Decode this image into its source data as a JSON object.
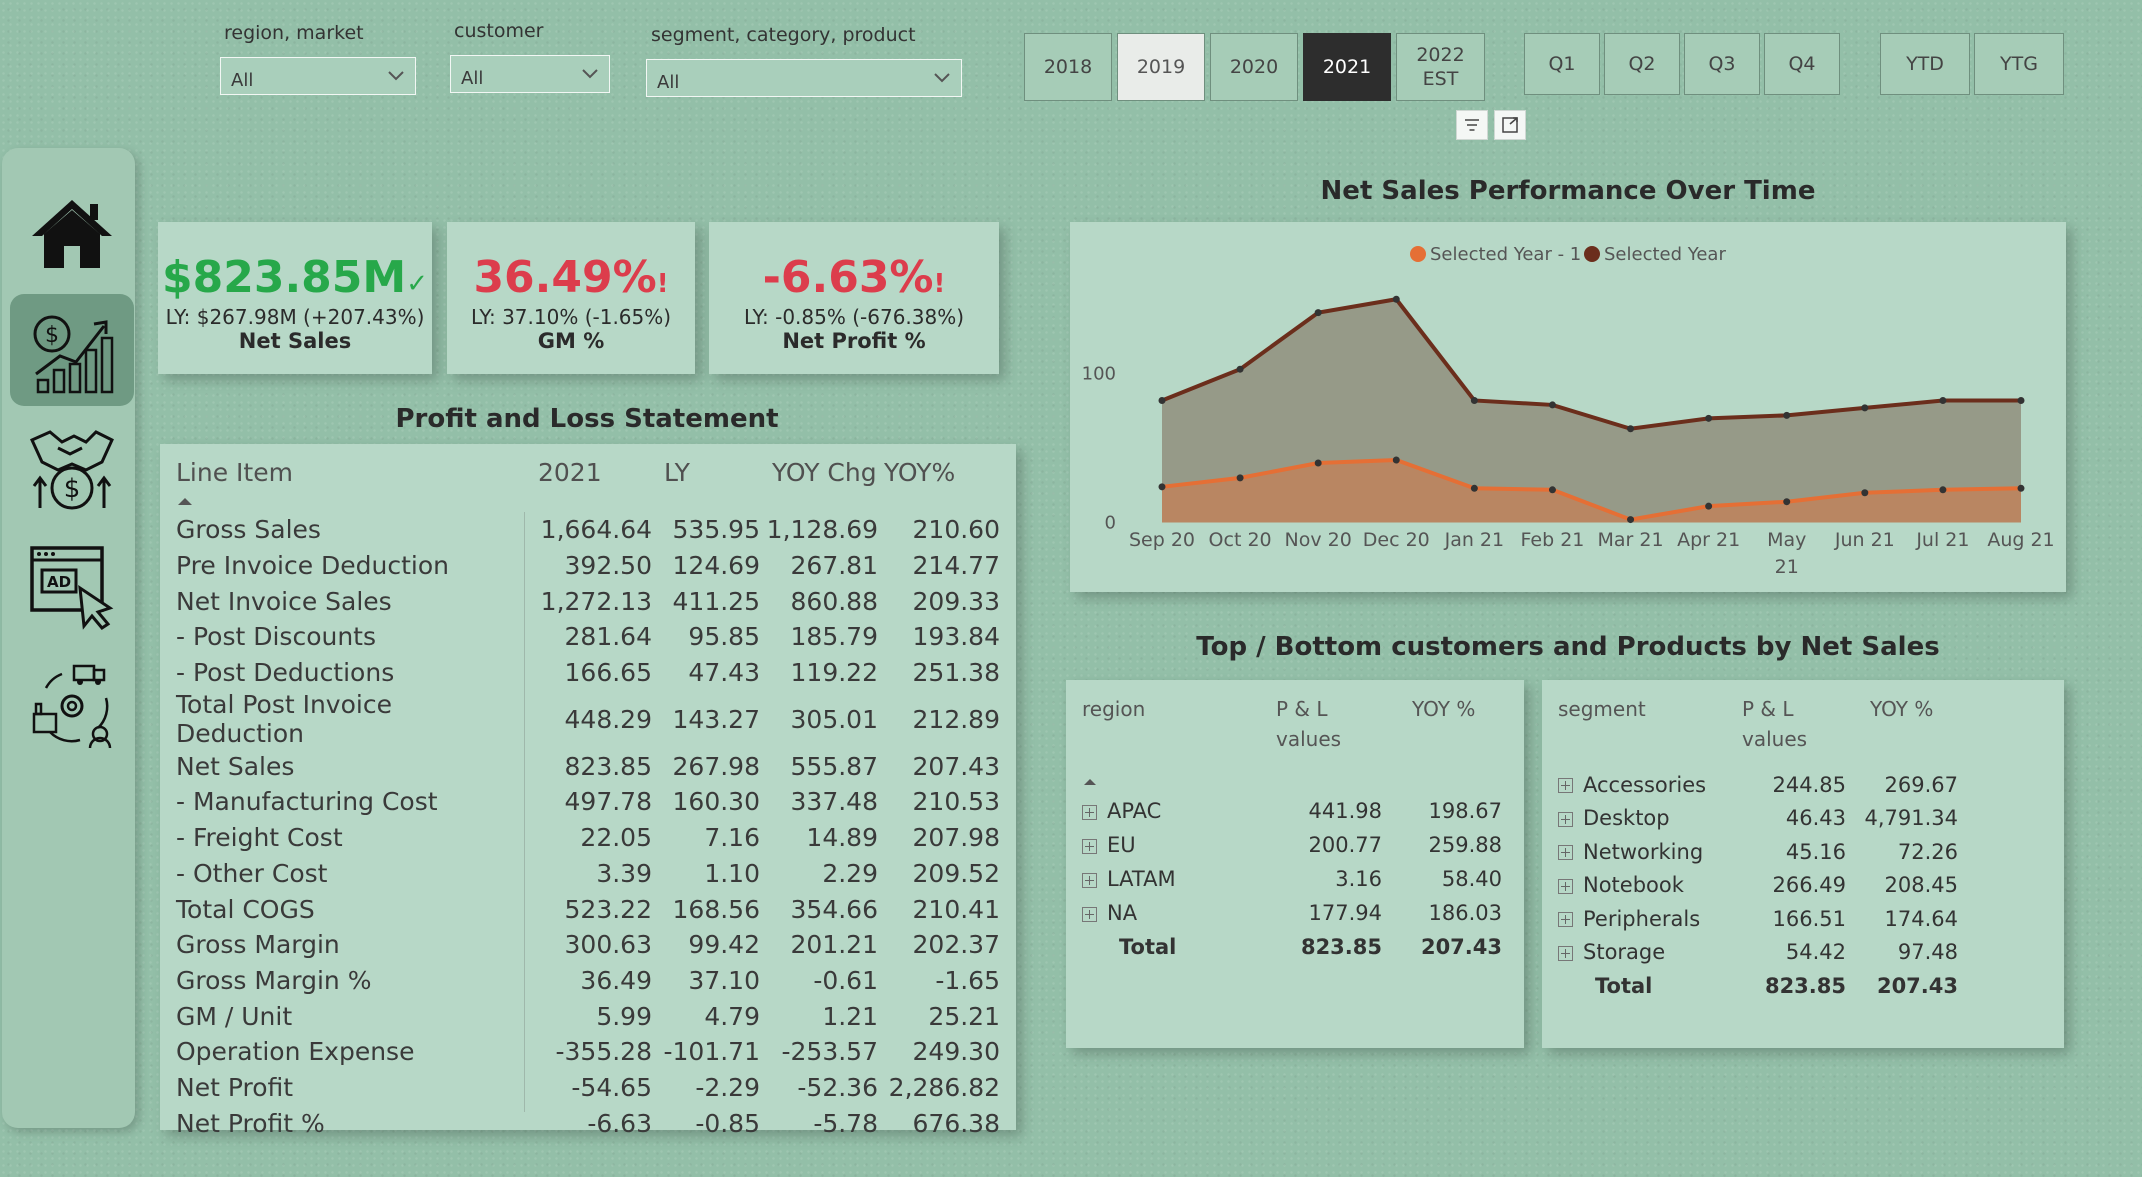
{
  "filters": {
    "region_label": "region, market",
    "region_value": "All",
    "customer_label": "customer",
    "customer_value": "All",
    "segment_label": "segment, category, product",
    "segment_value": "All"
  },
  "years": [
    "2018",
    "2019",
    "2020",
    "2021",
    "2022 EST"
  ],
  "selected_year": "2021",
  "quarters": [
    "Q1",
    "Q2",
    "Q3",
    "Q4"
  ],
  "periods": [
    "YTD",
    "YTG"
  ],
  "nav": {
    "items": [
      "home-icon",
      "finance-chart-icon",
      "handshake-money-icon",
      "ad-click-icon",
      "supply-chain-icon"
    ],
    "active_index": 1
  },
  "kpis": {
    "net_sales": {
      "value": "$823.85M",
      "ly": "LY: $267.98M (+207.43%)",
      "name": "Net Sales",
      "status": "✓"
    },
    "gm": {
      "value": "36.49%",
      "ly": "LY: 37.10% (-1.65%)",
      "name": "GM %",
      "status": "!"
    },
    "net_profit": {
      "value": "-6.63%",
      "ly": "LY: -0.85% (-676.38%)",
      "name": "Net Profit %",
      "status": "!"
    }
  },
  "colors": {
    "good": "#27a84a",
    "bad": "#dc3d4c",
    "ly_series": "#e56f35",
    "cy_series": "#6b2e1c"
  },
  "pl": {
    "title": "Profit and Loss Statement",
    "headers": [
      "Line Item",
      "2021",
      "LY",
      "YOY Chg",
      "YOY%"
    ],
    "rows": [
      [
        "Gross Sales",
        "1,664.64",
        "535.95",
        "1,128.69",
        "210.60"
      ],
      [
        "Pre Invoice Deduction",
        "392.50",
        "124.69",
        "267.81",
        "214.77"
      ],
      [
        "Net Invoice Sales",
        "1,272.13",
        "411.25",
        "860.88",
        "209.33"
      ],
      [
        "- Post Discounts",
        "281.64",
        "95.85",
        "185.79",
        "193.84"
      ],
      [
        "- Post Deductions",
        "166.65",
        "47.43",
        "119.22",
        "251.38"
      ],
      [
        "Total Post Invoice Deduction",
        "448.29",
        "143.27",
        "305.01",
        "212.89"
      ],
      [
        "Net Sales",
        "823.85",
        "267.98",
        "555.87",
        "207.43"
      ],
      [
        "- Manufacturing Cost",
        "497.78",
        "160.30",
        "337.48",
        "210.53"
      ],
      [
        "- Freight Cost",
        "22.05",
        "7.16",
        "14.89",
        "207.98"
      ],
      [
        "- Other Cost",
        "3.39",
        "1.10",
        "2.29",
        "209.52"
      ],
      [
        "Total COGS",
        "523.22",
        "168.56",
        "354.66",
        "210.41"
      ],
      [
        "Gross Margin",
        "300.63",
        "99.42",
        "201.21",
        "202.37"
      ],
      [
        "Gross Margin %",
        "36.49",
        "37.10",
        "-0.61",
        "-1.65"
      ],
      [
        "GM / Unit",
        "5.99",
        "4.79",
        "1.21",
        "25.21"
      ],
      [
        "Operation Expense",
        "-355.28",
        "-101.71",
        "-253.57",
        "249.30"
      ],
      [
        "Net Profit",
        "-54.65",
        "-2.29",
        "-52.36",
        "2,286.82"
      ],
      [
        "Net Profit %",
        "-6.63",
        "-0.85",
        "-5.78",
        "676.38"
      ]
    ]
  },
  "chart_title": "Net Sales Performance Over Time",
  "chart_data": {
    "type": "area",
    "title": "Net Sales Performance Over Time",
    "categories": [
      "Sep 20",
      "Oct 20",
      "Nov 20",
      "Dec 20",
      "Jan 21",
      "Feb 21",
      "Mar 21",
      "Apr 21",
      "May 21",
      "Jun 21",
      "Jul 21",
      "Aug 21"
    ],
    "series": [
      {
        "name": "Selected Year - 1",
        "values": [
          24,
          30,
          40,
          42,
          23,
          22,
          2,
          11,
          14,
          20,
          22,
          23
        ]
      },
      {
        "name": "Selected Year",
        "values": [
          82,
          103,
          141,
          150,
          82,
          79,
          63,
          70,
          72,
          77,
          82,
          82
        ]
      }
    ],
    "y_ticks": [
      0,
      100
    ],
    "ylim": [
      -5,
      175
    ],
    "legend_position": "top-center",
    "grid": false
  },
  "tb_title": "Top / Bottom customers and Products by Net Sales",
  "region_matrix": {
    "headers": [
      "region",
      "P & L values",
      "YOY %"
    ],
    "rows": [
      [
        "APAC",
        "441.98",
        "198.67"
      ],
      [
        "EU",
        "200.77",
        "259.88"
      ],
      [
        "LATAM",
        "3.16",
        "58.40"
      ],
      [
        "NA",
        "177.94",
        "186.03"
      ]
    ],
    "total": [
      "Total",
      "823.85",
      "207.43"
    ]
  },
  "segment_matrix": {
    "headers": [
      "segment",
      "P & L values",
      "YOY %"
    ],
    "rows": [
      [
        "Accessories",
        "244.85",
        "269.67"
      ],
      [
        "Desktop",
        "46.43",
        "4,791.34"
      ],
      [
        "Networking",
        "45.16",
        "72.26"
      ],
      [
        "Notebook",
        "266.49",
        "208.45"
      ],
      [
        "Peripherals",
        "166.51",
        "174.64"
      ],
      [
        "Storage",
        "54.42",
        "97.48"
      ]
    ],
    "total": [
      "Total",
      "823.85",
      "207.43"
    ]
  }
}
